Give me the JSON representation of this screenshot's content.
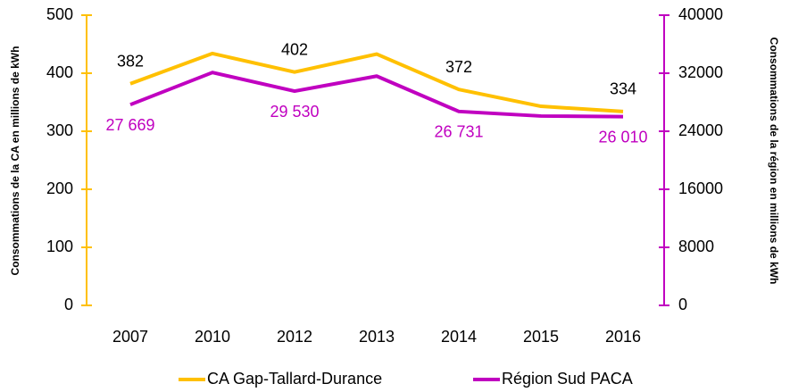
{
  "chart_data": {
    "type": "line",
    "y_label": "Consommations de la CA en millions de kWh",
    "y2_label": "Consommations de la région en millions de kWh",
    "categories": [
      "2007",
      "2010",
      "2012",
      "2013",
      "2014",
      "2015",
      "2016"
    ],
    "ylim": [
      0,
      500
    ],
    "yticks": [
      0,
      100,
      200,
      300,
      400,
      500
    ],
    "y2lim": [
      0,
      40000
    ],
    "y2ticks": [
      0,
      8000,
      16000,
      24000,
      32000,
      40000
    ],
    "legend": "bottom",
    "series": [
      {
        "name": "CA Gap-Tallard-Durance",
        "color": "#ffc000",
        "label_color": "#000000",
        "values": [
          382,
          434,
          402,
          433,
          372,
          343,
          334
        ],
        "value_labels": [
          "382",
          null,
          "402",
          null,
          "372",
          null,
          "334"
        ]
      },
      {
        "name": "Région Sud PACA",
        "color": "#c000c0",
        "axis": "y2",
        "label_color": "#c000c0",
        "values": [
          27669,
          32100,
          29530,
          31600,
          26731,
          26100,
          26010
        ],
        "value_labels": [
          "27 669",
          null,
          "29 530",
          null,
          "26 731",
          null,
          "26 010"
        ]
      }
    ]
  }
}
